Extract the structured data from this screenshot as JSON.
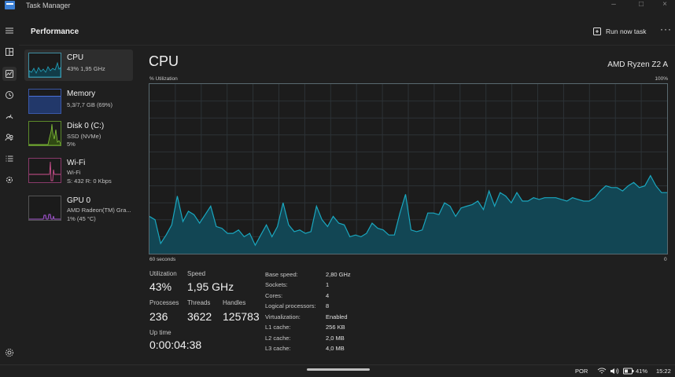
{
  "window": {
    "title": "Task Manager"
  },
  "header": {
    "title": "Performance",
    "run_task_label": "Run now task",
    "more_label": "···"
  },
  "sidebar": {
    "items": [
      {
        "title": "CPU",
        "lines": [
          "43%  1,95 GHz"
        ]
      },
      {
        "title": "Memory",
        "lines": [
          "5,3/7,7 GB (69%)"
        ]
      },
      {
        "title": "Disk 0 (C:)",
        "lines": [
          "SSD (NVMe)",
          "5%"
        ]
      },
      {
        "title": "Wi-Fi",
        "lines": [
          "Wi-Fi",
          "S: 432  R: 0 Kbps"
        ]
      },
      {
        "title": "GPU 0",
        "lines": [
          "AMD Radeon(TM) Gra...",
          "1% (45 °C)"
        ]
      }
    ]
  },
  "main": {
    "title": "CPU",
    "model": "AMD Ryzen Z2 A",
    "graph": {
      "y_label": "% Utilization",
      "y_max_label": "100%",
      "x_left_label": "60 seconds",
      "x_right_label": "0",
      "line_color": "#1aa7bf",
      "fill_color": "#124654",
      "values": [
        22,
        20,
        6,
        11,
        17,
        34,
        19,
        25,
        23,
        18,
        23,
        28,
        16,
        15,
        12,
        12,
        14,
        10,
        12,
        5,
        11,
        17,
        10,
        16,
        30,
        17,
        13,
        14,
        12,
        13,
        28,
        20,
        16,
        22,
        18,
        17,
        10,
        11,
        10,
        12,
        18,
        15,
        14,
        11,
        11,
        24,
        35,
        14,
        13,
        14,
        24,
        24,
        23,
        30,
        28,
        22,
        27,
        28,
        29,
        31,
        26,
        37,
        28,
        36,
        34,
        30,
        36,
        31,
        31,
        33,
        32,
        33,
        33,
        33,
        32,
        31,
        33,
        32,
        31,
        31,
        33,
        37,
        40,
        39,
        39,
        37,
        40,
        42,
        39,
        40,
        46,
        40,
        36,
        36
      ]
    },
    "stats": {
      "utilization_label": "Utilization",
      "utilization_value": "43%",
      "speed_label": "Speed",
      "speed_value": "1,95 GHz",
      "processes_label": "Processes",
      "processes_value": "236",
      "threads_label": "Threads",
      "threads_value": "3622",
      "handles_label": "Handles",
      "handles_value": "125783",
      "uptime_label": "Up time",
      "uptime_value": "0:00:04:38"
    },
    "specs": [
      {
        "label": "Base speed:",
        "value": "2,80 GHz"
      },
      {
        "label": "Sockets:",
        "value": "1"
      },
      {
        "label": "Cores:",
        "value": "4"
      },
      {
        "label": "Logical processors:",
        "value": "8"
      },
      {
        "label": "Virtualization:",
        "value": "Enabled"
      },
      {
        "label": "L1 cache:",
        "value": "256 KB"
      },
      {
        "label": "L2 cache:",
        "value": "2,0 MB"
      },
      {
        "label": "L3 cache:",
        "value": "4,0 MB"
      }
    ]
  },
  "taskbar": {
    "language": "POR",
    "battery": "41%",
    "time": "15:22"
  },
  "icons": [
    "hamburger-icon",
    "processes-icon",
    "performance-icon",
    "history-icon",
    "startup-icon",
    "users-icon",
    "details-icon",
    "services-icon",
    "settings-icon",
    "run-task-icon",
    "wifi-icon",
    "volume-icon",
    "battery-icon"
  ]
}
